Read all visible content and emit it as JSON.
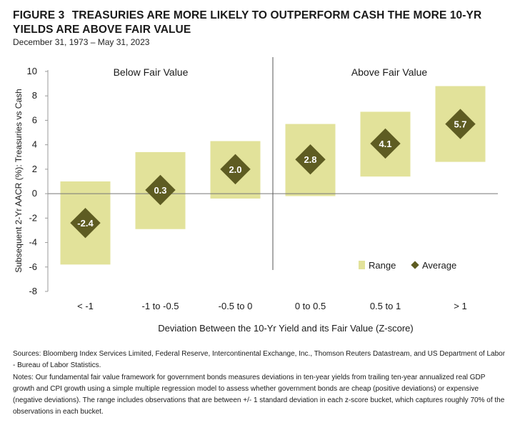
{
  "figure": {
    "number": "FIGURE 3",
    "title": "TREASURIES ARE MORE LIKELY TO OUTPERFORM CASH THE MORE 10-YR YIELDS ARE ABOVE FAIR VALUE",
    "subtitle": "December 31, 1973 – May 31, 2023"
  },
  "footnotes": {
    "sources": "Sources: Bloomberg Index Services Limited, Federal Reserve, Intercontinental Exchange, Inc., Thomson Reuters Datastream, and US Department of Labor - Bureau of Labor Statistics.",
    "notes": "Notes: Our fundamental fair value framework for government bonds measures deviations in ten-year yields from trailing ten-year annualized real GDP growth and CPI growth using a simple multiple regression model to assess whether government bonds are cheap (positive deviations) or expensive (negative deviations). The range includes observations that are between +/- 1 standard deviation in each z-score bucket, which captures roughly 70% of the observations in each bucket."
  },
  "chart_data": {
    "type": "bar",
    "categories": [
      "< -1",
      "-1 to -0.5",
      "-0.5 to 0",
      "0 to 0.5",
      "0.5 to 1",
      "> 1"
    ],
    "series": [
      {
        "name": "Range",
        "low": [
          -5.8,
          -2.9,
          -0.4,
          -0.2,
          1.4,
          2.6
        ],
        "high": [
          1.0,
          3.4,
          4.3,
          5.7,
          6.7,
          8.8
        ]
      },
      {
        "name": "Average",
        "values": [
          -2.4,
          0.3,
          2.0,
          2.8,
          4.1,
          5.7
        ],
        "labels": [
          "-2.4",
          "0.3",
          "2.0",
          "2.8",
          "4.1",
          "5.7"
        ]
      }
    ],
    "ylabel": "Subsequent 2-Yr AACR (%): Treasuries vs Cash",
    "xlabel": "Deviation Between the 10-Yr Yield and its Fair Value (Z-score)",
    "yticks": [
      "10",
      "8",
      "6",
      "4",
      "2",
      "0",
      "-2",
      "-4",
      "-6",
      "-8"
    ],
    "ylim": [
      -8,
      10
    ],
    "regions": [
      "Below Fair Value",
      "Above Fair Value"
    ],
    "divider_between_categories": [
      2,
      3
    ],
    "legend": {
      "position": "bottom-right",
      "items": [
        "Range",
        "Average"
      ]
    },
    "colors": {
      "range": "#e2e29a",
      "average": "#5e5c22",
      "label": "#ffffff",
      "divider": "#555555",
      "zero_line": "#777777"
    },
    "grid": false
  }
}
